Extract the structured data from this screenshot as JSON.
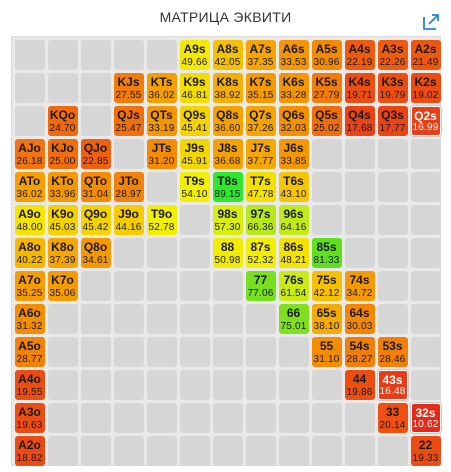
{
  "title": "МАТРИЦА ЭКВИТИ",
  "expand_icon": "expand-arrow-icon",
  "matrix": {
    "cells": [
      {
        "hand": "A9s",
        "equity": "49.66",
        "color": "#f4ea00",
        "text": "#1a1a1a",
        "row": 0,
        "col": 5
      },
      {
        "hand": "A8s",
        "equity": "42.05",
        "color": "#f5c000",
        "text": "#1a1a1a",
        "row": 0,
        "col": 6
      },
      {
        "hand": "A7s",
        "equity": "37.35",
        "color": "#f5a400",
        "text": "#1a1a1a",
        "row": 0,
        "col": 7
      },
      {
        "hand": "A6s",
        "equity": "33.53",
        "color": "#f59500",
        "text": "#1a1a1a",
        "row": 0,
        "col": 8
      },
      {
        "hand": "A5s",
        "equity": "30.96",
        "color": "#f58900",
        "text": "#1a1a1a",
        "row": 0,
        "col": 9
      },
      {
        "hand": "A4s",
        "equity": "22.19",
        "color": "#ef5a0f",
        "text": "#1a1a1a",
        "row": 0,
        "col": 10
      },
      {
        "hand": "A3s",
        "equity": "22.26",
        "color": "#ef5a0f",
        "text": "#1a1a1a",
        "row": 0,
        "col": 11
      },
      {
        "hand": "A2s",
        "equity": "21.49",
        "color": "#ef570f",
        "text": "#1a1a1a",
        "row": 0,
        "col": 12
      },
      {
        "hand": "KJs",
        "equity": "27.55",
        "color": "#f27c0a",
        "text": "#1a1a1a",
        "row": 1,
        "col": 3
      },
      {
        "hand": "KTs",
        "equity": "36.02",
        "color": "#f5a000",
        "text": "#1a1a1a",
        "row": 1,
        "col": 4
      },
      {
        "hand": "K9s",
        "equity": "46.81",
        "color": "#f3dc00",
        "text": "#1a1a1a",
        "row": 1,
        "col": 5
      },
      {
        "hand": "K8s",
        "equity": "38.92",
        "color": "#f5af00",
        "text": "#1a1a1a",
        "row": 1,
        "col": 6
      },
      {
        "hand": "K7s",
        "equity": "35.15",
        "color": "#f59b00",
        "text": "#1a1a1a",
        "row": 1,
        "col": 7
      },
      {
        "hand": "K6s",
        "equity": "33.28",
        "color": "#f59500",
        "text": "#1a1a1a",
        "row": 1,
        "col": 8
      },
      {
        "hand": "K5s",
        "equity": "27.79",
        "color": "#f27c0a",
        "text": "#1a1a1a",
        "row": 1,
        "col": 9
      },
      {
        "hand": "K4s",
        "equity": "19.71",
        "color": "#ec4e12",
        "text": "#1a1a1a",
        "row": 1,
        "col": 10
      },
      {
        "hand": "K3s",
        "equity": "19.79",
        "color": "#ec4e12",
        "text": "#1a1a1a",
        "row": 1,
        "col": 11
      },
      {
        "hand": "K2s",
        "equity": "19.02",
        "color": "#ec4b12",
        "text": "#1a1a1a",
        "row": 1,
        "col": 12
      },
      {
        "hand": "KQo",
        "equity": "24.70",
        "color": "#f06a0c",
        "text": "#1a1a1a",
        "row": 2,
        "col": 1
      },
      {
        "hand": "QJs",
        "equity": "25.47",
        "color": "#f0700c",
        "text": "#1a1a1a",
        "row": 2,
        "col": 3
      },
      {
        "hand": "QTs",
        "equity": "33.19",
        "color": "#f59500",
        "text": "#1a1a1a",
        "row": 2,
        "col": 4
      },
      {
        "hand": "Q9s",
        "equity": "45.41",
        "color": "#f4d400",
        "text": "#1a1a1a",
        "row": 2,
        "col": 5
      },
      {
        "hand": "Q8s",
        "equity": "36.60",
        "color": "#f5a200",
        "text": "#1a1a1a",
        "row": 2,
        "col": 6
      },
      {
        "hand": "Q7s",
        "equity": "37.26",
        "color": "#f5a400",
        "text": "#1a1a1a",
        "row": 2,
        "col": 7
      },
      {
        "hand": "Q6s",
        "equity": "32.03",
        "color": "#f59000",
        "text": "#1a1a1a",
        "row": 2,
        "col": 8
      },
      {
        "hand": "Q5s",
        "equity": "25.02",
        "color": "#f06d0c",
        "text": "#1a1a1a",
        "row": 2,
        "col": 9
      },
      {
        "hand": "Q4s",
        "equity": "17.68",
        "color": "#ea4414",
        "text": "#1a1a1a",
        "row": 2,
        "col": 10
      },
      {
        "hand": "Q3s",
        "equity": "17.77",
        "color": "#ea4414",
        "text": "#1a1a1a",
        "row": 2,
        "col": 11
      },
      {
        "hand": "Q2s",
        "equity": "16.99",
        "color": "#e93f15",
        "text": "#ffffff",
        "row": 2,
        "col": 12,
        "hot": true
      },
      {
        "hand": "AJo",
        "equity": "26.18",
        "color": "#f07410",
        "text": "#1a1a1a",
        "row": 3,
        "col": 0
      },
      {
        "hand": "KJo",
        "equity": "25.00",
        "color": "#f06d0c",
        "text": "#1a1a1a",
        "row": 3,
        "col": 1
      },
      {
        "hand": "QJo",
        "equity": "22.85",
        "color": "#ef600f",
        "text": "#1a1a1a",
        "row": 3,
        "col": 2
      },
      {
        "hand": "JTs",
        "equity": "31.20",
        "color": "#f58c00",
        "text": "#1a1a1a",
        "row": 3,
        "col": 4
      },
      {
        "hand": "J9s",
        "equity": "45.91",
        "color": "#f4d600",
        "text": "#1a1a1a",
        "row": 3,
        "col": 5
      },
      {
        "hand": "J8s",
        "equity": "36.68",
        "color": "#f5a200",
        "text": "#1a1a1a",
        "row": 3,
        "col": 6
      },
      {
        "hand": "J7s",
        "equity": "37.77",
        "color": "#f5a700",
        "text": "#1a1a1a",
        "row": 3,
        "col": 7
      },
      {
        "hand": "J6s",
        "equity": "33.85",
        "color": "#f59700",
        "text": "#1a1a1a",
        "row": 3,
        "col": 8
      },
      {
        "hand": "ATo",
        "equity": "36.02",
        "color": "#f5a000",
        "text": "#1a1a1a",
        "row": 4,
        "col": 0
      },
      {
        "hand": "KTo",
        "equity": "33.96",
        "color": "#f59800",
        "text": "#1a1a1a",
        "row": 4,
        "col": 1
      },
      {
        "hand": "QTo",
        "equity": "31.04",
        "color": "#f58c00",
        "text": "#1a1a1a",
        "row": 4,
        "col": 2
      },
      {
        "hand": "JTo",
        "equity": "28.97",
        "color": "#f28208",
        "text": "#1a1a1a",
        "row": 4,
        "col": 3
      },
      {
        "hand": "T9s",
        "equity": "54.10",
        "color": "#f0f000",
        "text": "#1a1a1a",
        "row": 4,
        "col": 5
      },
      {
        "hand": "T8s",
        "equity": "89.15",
        "color": "#2ee82e",
        "text": "#1a1a1a",
        "row": 4,
        "col": 6
      },
      {
        "hand": "T7s",
        "equity": "47.78",
        "color": "#f4e000",
        "text": "#1a1a1a",
        "row": 4,
        "col": 7
      },
      {
        "hand": "T6s",
        "equity": "43.10",
        "color": "#f5c600",
        "text": "#1a1a1a",
        "row": 4,
        "col": 8
      },
      {
        "hand": "A9o",
        "equity": "48.00",
        "color": "#f4e400",
        "text": "#1a1a1a",
        "row": 5,
        "col": 0
      },
      {
        "hand": "K9o",
        "equity": "45.03",
        "color": "#f4d200",
        "text": "#1a1a1a",
        "row": 5,
        "col": 1
      },
      {
        "hand": "Q9o",
        "equity": "45.42",
        "color": "#f4d400",
        "text": "#1a1a1a",
        "row": 5,
        "col": 2
      },
      {
        "hand": "J9o",
        "equity": "44.16",
        "color": "#f4cc00",
        "text": "#1a1a1a",
        "row": 5,
        "col": 3
      },
      {
        "hand": "T9o",
        "equity": "52.78",
        "color": "#f2f000",
        "text": "#1a1a1a",
        "row": 5,
        "col": 4
      },
      {
        "hand": "98s",
        "equity": "57.30",
        "color": "#d8ee10",
        "text": "#1a1a1a",
        "row": 5,
        "col": 6
      },
      {
        "hand": "97s",
        "equity": "66.36",
        "color": "#b8e81a",
        "text": "#1a1a1a",
        "row": 5,
        "col": 7
      },
      {
        "hand": "96s",
        "equity": "64.16",
        "color": "#c2ea16",
        "text": "#1a1a1a",
        "row": 5,
        "col": 8
      },
      {
        "hand": "A8o",
        "equity": "40.22",
        "color": "#f5b700",
        "text": "#1a1a1a",
        "row": 6,
        "col": 0
      },
      {
        "hand": "K8o",
        "equity": "37.39",
        "color": "#f5a600",
        "text": "#1a1a1a",
        "row": 6,
        "col": 1
      },
      {
        "hand": "Q8o",
        "equity": "34.61",
        "color": "#f59900",
        "text": "#1a1a1a",
        "row": 6,
        "col": 2
      },
      {
        "hand": "88",
        "equity": "50.98",
        "color": "#f2ec00",
        "text": "#1a1a1a",
        "row": 6,
        "col": 6
      },
      {
        "hand": "87s",
        "equity": "52.32",
        "color": "#f2ee00",
        "text": "#1a1a1a",
        "row": 6,
        "col": 7
      },
      {
        "hand": "86s",
        "equity": "48.21",
        "color": "#f4e200",
        "text": "#1a1a1a",
        "row": 6,
        "col": 8
      },
      {
        "hand": "85s",
        "equity": "81.33",
        "color": "#5ee020",
        "text": "#1a1a1a",
        "row": 6,
        "col": 9
      },
      {
        "hand": "A7o",
        "equity": "35.25",
        "color": "#f59c00",
        "text": "#1a1a1a",
        "row": 7,
        "col": 0
      },
      {
        "hand": "K7o",
        "equity": "35.06",
        "color": "#f59b00",
        "text": "#1a1a1a",
        "row": 7,
        "col": 1
      },
      {
        "hand": "77",
        "equity": "77.06",
        "color": "#76e020",
        "text": "#1a1a1a",
        "row": 7,
        "col": 7
      },
      {
        "hand": "76s",
        "equity": "61.54",
        "color": "#caea14",
        "text": "#1a1a1a",
        "row": 7,
        "col": 8
      },
      {
        "hand": "75s",
        "equity": "42.12",
        "color": "#f5c000",
        "text": "#1a1a1a",
        "row": 7,
        "col": 9
      },
      {
        "hand": "74s",
        "equity": "34.72",
        "color": "#f59900",
        "text": "#1a1a1a",
        "row": 7,
        "col": 10
      },
      {
        "hand": "A6o",
        "equity": "31.32",
        "color": "#f58d00",
        "text": "#1a1a1a",
        "row": 8,
        "col": 0
      },
      {
        "hand": "66",
        "equity": "75.01",
        "color": "#80e020",
        "text": "#1a1a1a",
        "row": 8,
        "col": 8
      },
      {
        "hand": "65s",
        "equity": "38.10",
        "color": "#f5ab00",
        "text": "#1a1a1a",
        "row": 8,
        "col": 9
      },
      {
        "hand": "64s",
        "equity": "30.03",
        "color": "#f58700",
        "text": "#1a1a1a",
        "row": 8,
        "col": 10
      },
      {
        "hand": "A5o",
        "equity": "28.77",
        "color": "#f28108",
        "text": "#1a1a1a",
        "row": 9,
        "col": 0
      },
      {
        "hand": "55",
        "equity": "31.10",
        "color": "#f58c00",
        "text": "#1a1a1a",
        "row": 9,
        "col": 9
      },
      {
        "hand": "54s",
        "equity": "28.27",
        "color": "#f27e0a",
        "text": "#1a1a1a",
        "row": 9,
        "col": 10
      },
      {
        "hand": "53s",
        "equity": "28.46",
        "color": "#f27f0a",
        "text": "#1a1a1a",
        "row": 9,
        "col": 11
      },
      {
        "hand": "A4o",
        "equity": "19.55",
        "color": "#ec4d12",
        "text": "#1a1a1a",
        "row": 10,
        "col": 0
      },
      {
        "hand": "44",
        "equity": "19.86",
        "color": "#ec4e12",
        "text": "#1a1a1a",
        "row": 10,
        "col": 10
      },
      {
        "hand": "43s",
        "equity": "16.48",
        "color": "#e93c15",
        "text": "#ffffff",
        "row": 10,
        "col": 11,
        "hot": true
      },
      {
        "hand": "A3o",
        "equity": "19.63",
        "color": "#ec4d12",
        "text": "#1a1a1a",
        "row": 11,
        "col": 0
      },
      {
        "hand": "33",
        "equity": "20.14",
        "color": "#ed5011",
        "text": "#1a1a1a",
        "row": 11,
        "col": 11
      },
      {
        "hand": "32s",
        "equity": "10.62",
        "color": "#e52a18",
        "text": "#ffffff",
        "row": 11,
        "col": 12,
        "hot": true
      },
      {
        "hand": "A2o",
        "equity": "18.82",
        "color": "#eb4a12",
        "text": "#1a1a1a",
        "row": 12,
        "col": 0
      },
      {
        "hand": "22",
        "equity": "19.33",
        "color": "#ec4c12",
        "text": "#1a1a1a",
        "row": 12,
        "col": 12
      }
    ]
  }
}
